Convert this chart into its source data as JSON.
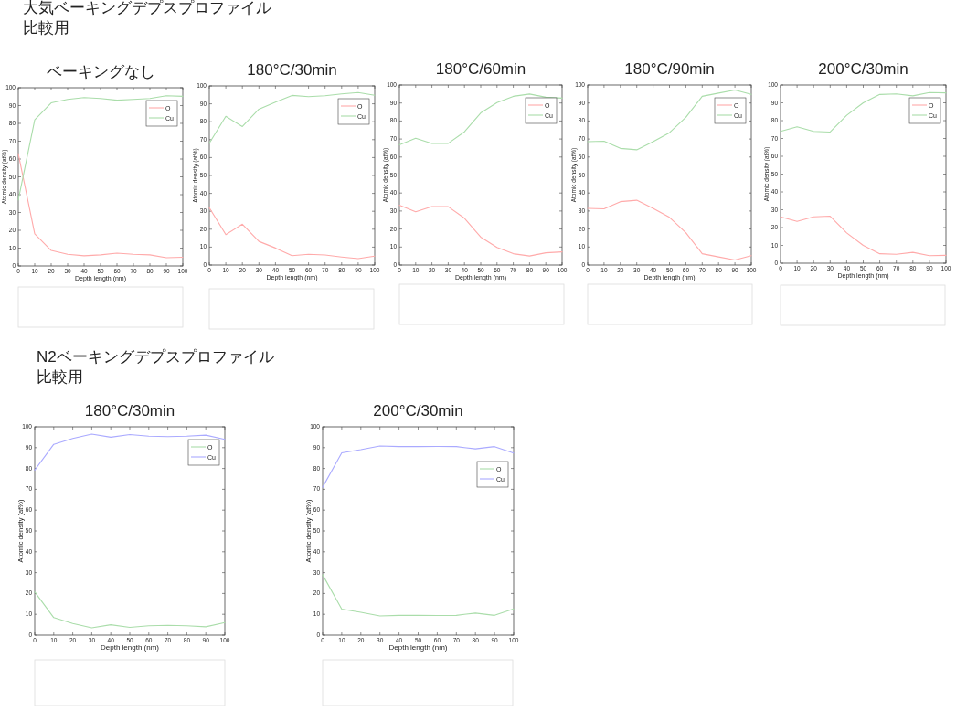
{
  "chart_data": [
    {
      "type": "line",
      "title": "ベーキングなし",
      "annotations": [
        "大気ベーキングデプスプロファイル",
        "比較用"
      ],
      "xlabel": "Depth length (nm)",
      "ylabel": "Atomic density (at%)",
      "x": [
        0,
        10,
        20,
        30,
        40,
        50,
        60,
        70,
        80,
        90,
        100
      ],
      "xlim": [
        0,
        100
      ],
      "ylim": [
        0,
        100
      ],
      "xticks": [
        0,
        10,
        20,
        30,
        40,
        50,
        60,
        70,
        80,
        90,
        100
      ],
      "yticks": [
        0,
        10,
        20,
        30,
        40,
        50,
        60,
        70,
        80,
        90,
        100
      ],
      "legend": "top right",
      "series": [
        {
          "name": "O",
          "color": "#ffaaaa",
          "values": [
            63,
            18,
            8.7,
            6.5,
            5.7,
            6.2,
            7.2,
            6.5,
            6.2,
            4.6,
            4.9
          ]
        },
        {
          "name": "Cu",
          "color": "#aaddaa",
          "values": [
            37,
            82,
            91.5,
            93.5,
            94.5,
            94,
            93,
            93.5,
            94,
            95.5,
            95.2
          ]
        }
      ]
    },
    {
      "type": "line",
      "title": "180°C/30min",
      "xlabel": "Depth length (nm)",
      "ylabel": "Atomic density (at%)",
      "x": [
        0,
        10,
        20,
        30,
        40,
        50,
        60,
        70,
        80,
        90,
        100
      ],
      "xlim": [
        0,
        100
      ],
      "ylim": [
        0,
        100
      ],
      "xticks": [
        0,
        10,
        20,
        30,
        40,
        50,
        60,
        70,
        80,
        90,
        100
      ],
      "yticks": [
        0,
        10,
        20,
        30,
        40,
        50,
        60,
        70,
        80,
        90,
        100
      ],
      "legend": "top right",
      "series": [
        {
          "name": "O",
          "color": "#ffaaaa",
          "values": [
            32,
            17,
            22.8,
            13.2,
            9.5,
            5.2,
            6,
            5.6,
            4.5,
            3.6,
            5
          ]
        },
        {
          "name": "Cu",
          "color": "#aaddaa",
          "values": [
            68,
            83,
            77.3,
            87,
            91,
            94.7,
            94,
            94.5,
            95.5,
            96.3,
            94.8
          ]
        }
      ]
    },
    {
      "type": "line",
      "title": "180°C/60min",
      "xlabel": "Depth length (nm)",
      "ylabel": "Atomic density (at%)",
      "x": [
        0,
        10,
        20,
        30,
        40,
        50,
        60,
        70,
        80,
        90,
        100
      ],
      "xlim": [
        0,
        100
      ],
      "ylim": [
        0,
        100
      ],
      "xticks": [
        0,
        10,
        20,
        30,
        40,
        50,
        60,
        70,
        80,
        90,
        100
      ],
      "yticks": [
        0,
        10,
        20,
        30,
        40,
        50,
        60,
        70,
        80,
        90,
        100
      ],
      "legend": "top right",
      "series": [
        {
          "name": "O",
          "color": "#ffaaaa",
          "values": [
            33.2,
            29.6,
            32.5,
            32.4,
            26,
            15.5,
            9.8,
            6.3,
            5,
            6.8,
            7.3
          ]
        },
        {
          "name": "Cu",
          "color": "#aaddaa",
          "values": [
            66.8,
            70.4,
            67.5,
            67.6,
            74,
            84.5,
            90.2,
            93.7,
            95,
            93.2,
            92.7
          ]
        }
      ]
    },
    {
      "type": "line",
      "title": "180°C/90min",
      "xlabel": "Depth length (nm)",
      "ylabel": "Atomic density (at%)",
      "x": [
        0,
        10,
        20,
        30,
        40,
        50,
        60,
        70,
        80,
        90,
        100
      ],
      "xlim": [
        0,
        100
      ],
      "ylim": [
        0,
        100
      ],
      "xticks": [
        0,
        10,
        20,
        30,
        40,
        50,
        60,
        70,
        80,
        90,
        100
      ],
      "yticks": [
        0,
        10,
        20,
        30,
        40,
        50,
        60,
        70,
        80,
        90,
        100
      ],
      "legend": "top right",
      "series": [
        {
          "name": "O",
          "color": "#ffaaaa",
          "values": [
            31.5,
            31.2,
            35.2,
            36,
            31.5,
            26.5,
            18,
            6.3,
            4.5,
            2.8,
            5.2
          ]
        },
        {
          "name": "Cu",
          "color": "#aaddaa",
          "values": [
            68.5,
            68.8,
            64.8,
            64,
            68.5,
            73.5,
            82,
            93.7,
            95.5,
            97.2,
            94.8
          ]
        }
      ]
    },
    {
      "type": "line",
      "title": "200°C/30min",
      "xlabel": "Depth length (nm)",
      "ylabel": "Atomic density (at%)",
      "x": [
        0,
        10,
        20,
        30,
        40,
        50,
        60,
        70,
        80,
        90,
        100
      ],
      "xlim": [
        0,
        100
      ],
      "ylim": [
        0,
        100
      ],
      "xticks": [
        0,
        10,
        20,
        30,
        40,
        50,
        60,
        70,
        80,
        90,
        100
      ],
      "yticks": [
        0,
        10,
        20,
        30,
        40,
        50,
        60,
        70,
        80,
        90,
        100
      ],
      "legend": "top right",
      "series": [
        {
          "name": "O",
          "color": "#ffaaaa",
          "values": [
            26,
            23.5,
            26,
            26.4,
            17,
            10,
            5.3,
            5,
            6.1,
            4.2,
            4.4
          ]
        },
        {
          "name": "Cu",
          "color": "#aaddaa",
          "values": [
            74,
            76.5,
            74,
            73.6,
            83,
            90,
            94.7,
            95,
            93.9,
            95.8,
            95.6
          ]
        }
      ]
    },
    {
      "type": "line",
      "title": "180°C/30min",
      "annotations": [
        "N2ベーキングデプスプロファイル",
        "比較用"
      ],
      "xlabel": "Depth length (nm)",
      "ylabel": "Atomic density (at%)",
      "x": [
        0,
        10,
        20,
        30,
        40,
        50,
        60,
        70,
        80,
        90,
        100
      ],
      "xlim": [
        0,
        100
      ],
      "ylim": [
        0,
        100
      ],
      "xticks": [
        0,
        10,
        20,
        30,
        40,
        50,
        60,
        70,
        80,
        90,
        100
      ],
      "yticks": [
        0,
        10,
        20,
        30,
        40,
        50,
        60,
        70,
        80,
        90,
        100
      ],
      "legend": "top right",
      "series": [
        {
          "name": "O",
          "color": "#aaddaa",
          "values": [
            20.8,
            8.4,
            5.6,
            3.5,
            5,
            3.7,
            4.5,
            4.7,
            4.5,
            4,
            6
          ]
        },
        {
          "name": "Cu",
          "color": "#aaaaff",
          "values": [
            79.2,
            91.6,
            94.4,
            96.5,
            95,
            96.3,
            95.5,
            95.3,
            95.5,
            96,
            94
          ]
        }
      ]
    },
    {
      "type": "line",
      "title": "200°C/30min",
      "xlabel": "Depth length (nm)",
      "ylabel": "Atomic density (at%)",
      "x": [
        0,
        10,
        20,
        30,
        40,
        50,
        60,
        70,
        80,
        90,
        100
      ],
      "xlim": [
        0,
        100
      ],
      "ylim": [
        0,
        100
      ],
      "xticks": [
        0,
        10,
        20,
        30,
        40,
        50,
        60,
        70,
        80,
        90,
        100
      ],
      "yticks": [
        0,
        10,
        20,
        30,
        40,
        50,
        60,
        70,
        80,
        90,
        100
      ],
      "legend": "top right",
      "series": [
        {
          "name": "O",
          "color": "#aaddaa",
          "values": [
            29,
            12.5,
            11,
            9.2,
            9.5,
            9.5,
            9.4,
            9.5,
            10.6,
            9.5,
            12.6
          ]
        },
        {
          "name": "Cu",
          "color": "#aaaaff",
          "values": [
            71,
            87.5,
            89,
            90.8,
            90.5,
            90.5,
            90.6,
            90.5,
            89.4,
            90.5,
            87.4
          ]
        }
      ]
    }
  ]
}
